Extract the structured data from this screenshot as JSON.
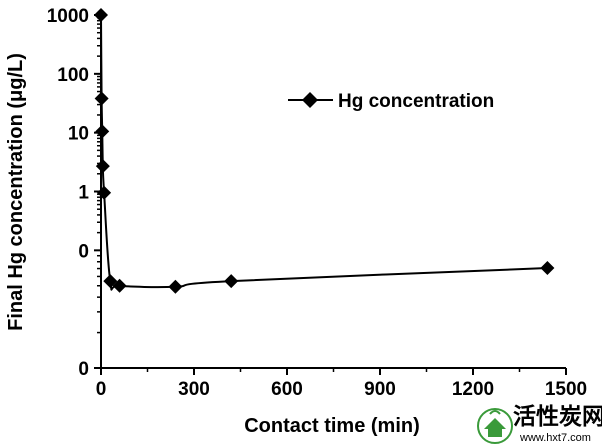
{
  "chart_data": {
    "type": "scatter",
    "title": "",
    "xlabel": "Contact time (min)",
    "ylabel": "Final Hg concentration (μg/L)",
    "xlim": [
      0,
      1500
    ],
    "x_ticks": [
      0,
      300,
      600,
      900,
      1200,
      1500
    ],
    "y_tick_labels": [
      "0",
      "0",
      "1",
      "10",
      "100",
      "1000"
    ],
    "y_scale": "log",
    "y_range_decades": [
      0.001,
      1000
    ],
    "grid": false,
    "legend": {
      "position": "top-right",
      "entries": [
        "Hg concentration"
      ]
    },
    "series": [
      {
        "name": "Hg concentration",
        "marker": "diamond",
        "line": "smoothed",
        "color": "#000000",
        "x": [
          0,
          2,
          4,
          6,
          10,
          30,
          60,
          240,
          420,
          1440
        ],
        "y": [
          1000,
          38,
          10.5,
          2.7,
          0.95,
          0.03,
          0.025,
          0.024,
          0.03,
          0.05
        ]
      }
    ]
  },
  "watermark": {
    "text": "活性炭网",
    "url": "www.hxt7.com"
  }
}
